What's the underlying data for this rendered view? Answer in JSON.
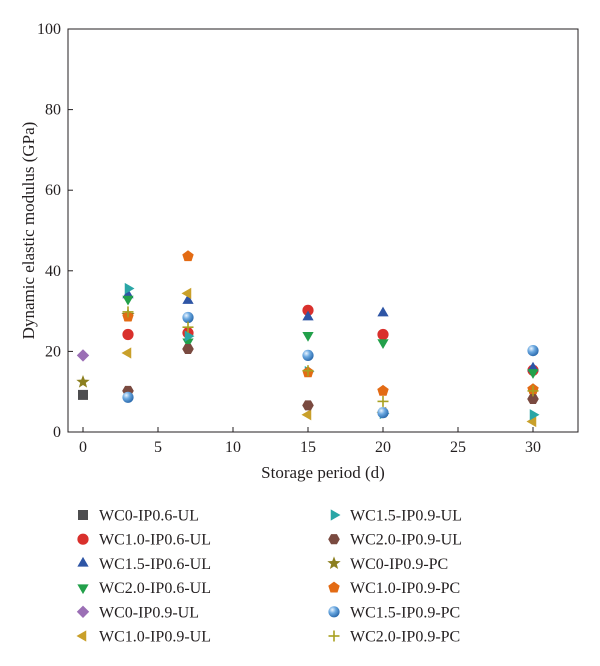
{
  "chart_data": {
    "type": "scatter",
    "title": "",
    "xlabel": "Storage period (d)",
    "ylabel": "Dynamic elastic modulus (GPa)",
    "xlim": [
      -1,
      33
    ],
    "ylim": [
      0,
      100
    ],
    "xticks": [
      0,
      5,
      10,
      15,
      20,
      25,
      30
    ],
    "yticks": [
      0,
      20,
      40,
      60,
      80,
      100
    ],
    "grid": false,
    "legend_position": "bottom",
    "series": [
      {
        "name": "WC0-IP0.6-UL",
        "marker": "square",
        "color": "#4d4d4f",
        "points": [
          [
            0,
            9.2
          ]
        ]
      },
      {
        "name": "WC1.0-IP0.6-UL",
        "marker": "circle",
        "color": "#d9302c",
        "points": [
          [
            3,
            24.2
          ],
          [
            7,
            24.6
          ],
          [
            15,
            30.2
          ],
          [
            20,
            24.2
          ],
          [
            30,
            15.3
          ]
        ]
      },
      {
        "name": "WC1.5-IP0.6-UL",
        "marker": "triangle-up",
        "color": "#2e55a5",
        "points": [
          [
            3,
            34.0
          ],
          [
            7,
            32.6
          ],
          [
            15,
            28.5
          ],
          [
            20,
            29.5
          ],
          [
            30,
            15.8
          ]
        ]
      },
      {
        "name": "WC2.0-IP0.6-UL",
        "marker": "triangle-down",
        "color": "#22a04a",
        "points": [
          [
            3,
            33.0
          ],
          [
            7,
            22.4
          ],
          [
            15,
            24.0
          ],
          [
            20,
            22.2
          ],
          [
            30,
            14.8
          ]
        ]
      },
      {
        "name": "WC0-IP0.9-UL",
        "marker": "diamond",
        "color": "#9b6fb5",
        "points": [
          [
            0,
            19.0
          ]
        ]
      },
      {
        "name": "WC1.0-IP0.9-UL",
        "marker": "triangle-left",
        "color": "#c9a02a",
        "points": [
          [
            3,
            19.6
          ],
          [
            7,
            34.4
          ],
          [
            15,
            4.3
          ],
          [
            20,
            4.9
          ],
          [
            30,
            2.6
          ]
        ]
      },
      {
        "name": "WC1.5-IP0.9-UL",
        "marker": "triangle-right",
        "color": "#2aa6a6",
        "points": [
          [
            3,
            35.6
          ],
          [
            7,
            23.8
          ],
          [
            15,
            15.0
          ],
          [
            20,
            4.6
          ],
          [
            30,
            4.3
          ]
        ]
      },
      {
        "name": "WC2.0-IP0.9-UL",
        "marker": "hexagon",
        "color": "#7a4a40",
        "points": [
          [
            3,
            10.2
          ],
          [
            7,
            20.6
          ],
          [
            15,
            6.6
          ],
          [
            30,
            8.2
          ]
        ]
      },
      {
        "name": "WC0-IP0.9-PC",
        "marker": "star",
        "color": "#8c7f1f",
        "points": [
          [
            0,
            12.4
          ],
          [
            3,
            29.0
          ]
        ]
      },
      {
        "name": "WC1.0-IP0.9-PC",
        "marker": "pentagon",
        "color": "#e36b14",
        "points": [
          [
            3,
            28.6
          ],
          [
            7,
            43.6
          ],
          [
            15,
            14.8
          ],
          [
            20,
            10.2
          ],
          [
            30,
            10.6
          ]
        ]
      },
      {
        "name": "WC1.5-IP0.9-PC",
        "marker": "sphere",
        "color": "#4a90d6",
        "points": [
          [
            3,
            8.6
          ],
          [
            7,
            28.4
          ],
          [
            15,
            19.0
          ],
          [
            20,
            4.8
          ],
          [
            30,
            20.2
          ]
        ]
      },
      {
        "name": "WC2.0-IP0.9-PC",
        "marker": "plus",
        "color": "#a8a020",
        "points": [
          [
            3,
            29.8
          ],
          [
            7,
            26.0
          ],
          [
            15,
            15.2
          ],
          [
            20,
            7.6
          ],
          [
            30,
            10.2
          ]
        ]
      }
    ]
  }
}
